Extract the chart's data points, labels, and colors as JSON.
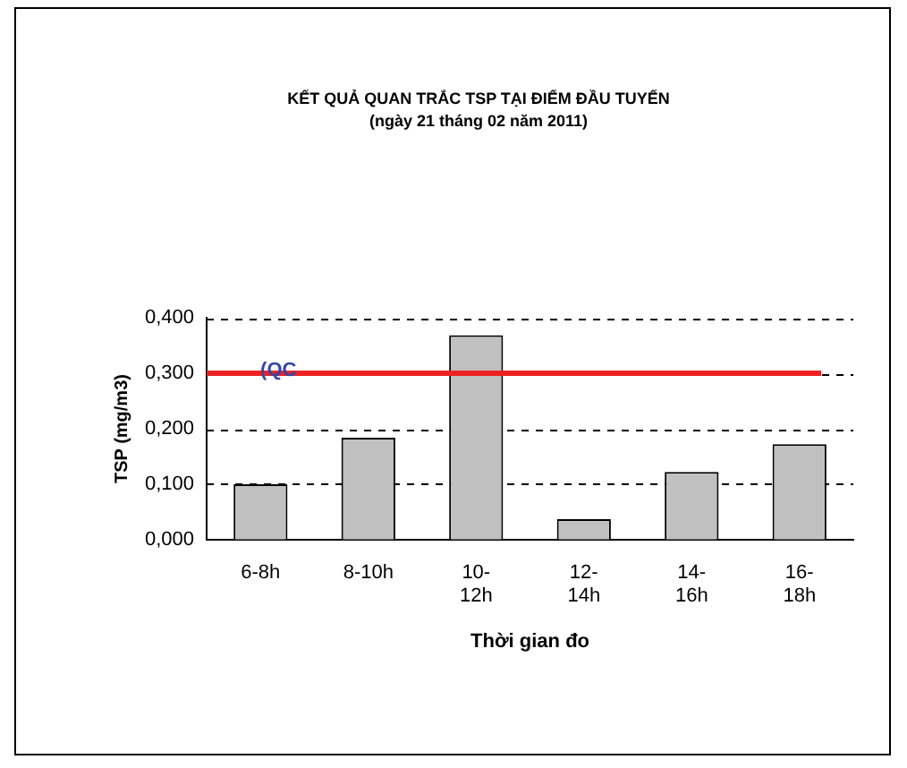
{
  "chart_data": {
    "type": "bar",
    "title": "KẾT QUẢ QUAN TRẮC TSP TẠI ĐIỂM ĐẦU TUYẾN",
    "subtitle": "(ngày 21 tháng 02 năm 2011)",
    "xlabel": "Thời gian đo",
    "ylabel": "TSP (mg/m3)",
    "categories": [
      "6-8h",
      "8-10h",
      "10-12h",
      "12-14h",
      "14-16h",
      "16-18h"
    ],
    "values": [
      0.1,
      0.184,
      0.369,
      0.037,
      0.122,
      0.172
    ],
    "color": "#c0c0c0",
    "ylim": [
      0,
      0.4
    ],
    "yticks": [
      {
        "value": 0,
        "label": "0,000"
      },
      {
        "value": 0.1,
        "label": "0,100"
      },
      {
        "value": 0.2,
        "label": "0,200"
      },
      {
        "value": 0.3,
        "label": "0,300"
      },
      {
        "value": 0.4,
        "label": "0,400"
      }
    ],
    "grid": "y",
    "legend": false,
    "ref_lines": [
      {
        "axis": "y",
        "value": 0.3,
        "label": "(QC",
        "color": "#ee2222"
      }
    ]
  }
}
